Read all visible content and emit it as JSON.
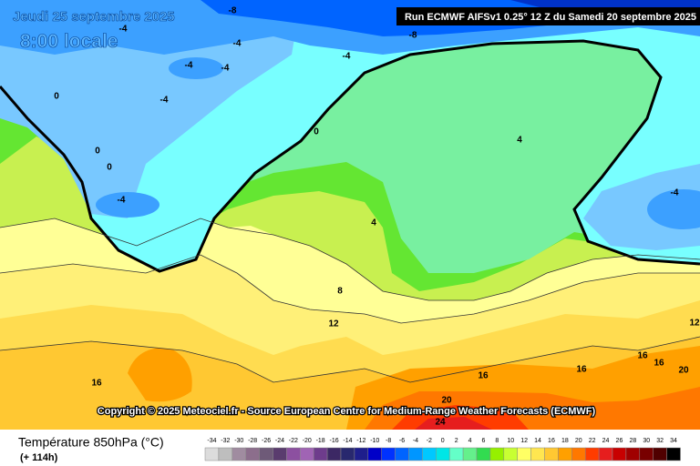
{
  "header": {
    "date": "Jeudi 25 septembre 2025",
    "time": "8:00 locale",
    "run": "Run ECMWF AIFSv1 0.25° 12 Z du Samedi 20 septembre 2025"
  },
  "copyright": "Copyright © 2025 Meteociel.fr - Source European Centre for Medium-Range Weather Forecasts (ECMWF)",
  "footer": {
    "title": "Température 850hPa (°C)",
    "lead": "(+ 114h)"
  },
  "legend": {
    "ticks": [
      -34,
      -32,
      -30,
      -28,
      -26,
      -24,
      -22,
      -20,
      -18,
      -16,
      -14,
      -12,
      -10,
      -8,
      -6,
      -4,
      -2,
      0,
      2,
      4,
      6,
      8,
      10,
      12,
      14,
      16,
      18,
      20,
      22,
      24,
      26,
      28,
      30,
      32,
      34
    ],
    "colors": [
      "#dcdcdc",
      "#bebebe",
      "#a08ca0",
      "#8c6e8c",
      "#6e5a78",
      "#5a3c6e",
      "#8c50a0",
      "#a064b4",
      "#6e3c8c",
      "#3c2864",
      "#28286e",
      "#1e1e8c",
      "#0000c8",
      "#0032ff",
      "#0064ff",
      "#0096ff",
      "#00c8ff",
      "#00e6e6",
      "#64ffc8",
      "#64f08c",
      "#32dc50",
      "#96f000",
      "#c8ff32",
      "#ffff64",
      "#ffe650",
      "#ffc832",
      "#ffa000",
      "#ff7800",
      "#ff3c00",
      "#e61e1e",
      "#c80000",
      "#a00000",
      "#780000",
      "#500000",
      "#000000"
    ]
  },
  "contour_labels": [
    -8,
    -8,
    -4,
    -4,
    -4,
    -4,
    -4,
    -4,
    -4,
    -4,
    0,
    0,
    0,
    0,
    4,
    4,
    8,
    12,
    12,
    16,
    16,
    16,
    16,
    16,
    20,
    20,
    24
  ]
}
